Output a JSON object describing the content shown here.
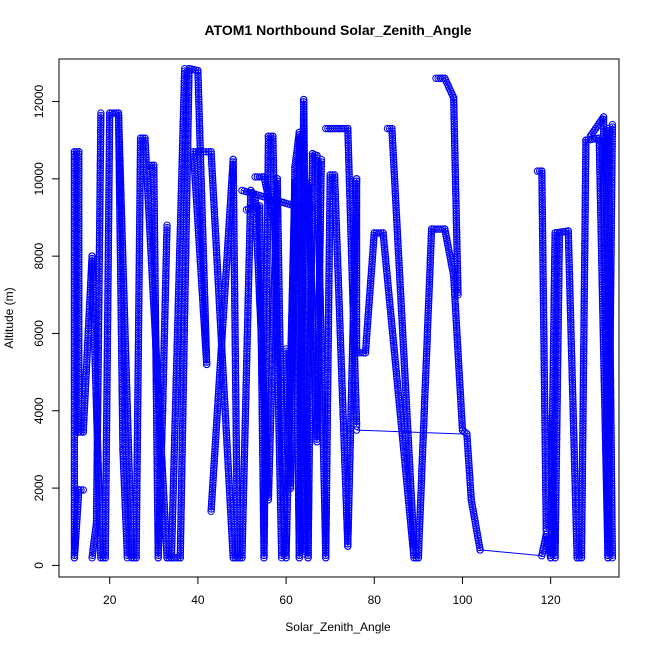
{
  "chart_data": {
    "type": "scatter",
    "title": "ATOM1 Northbound Solar_Zenith_Angle",
    "xlabel": "Solar_Zenith_Angle",
    "ylabel": "Altitude (m)",
    "xlim": [
      8.5,
      135.5
    ],
    "ylim": [
      -300,
      13100
    ],
    "xticks": [
      20,
      40,
      60,
      80,
      100,
      120
    ],
    "yticks": [
      0,
      2000,
      4000,
      6000,
      8000,
      10000,
      12000
    ],
    "color": "#0000ff",
    "marker": "open-circle",
    "connected": true,
    "track": [
      [
        12,
        200
      ],
      [
        12,
        10700
      ],
      [
        13,
        10700
      ],
      [
        13,
        3450
      ],
      [
        14,
        3450
      ],
      [
        16,
        8000
      ],
      [
        18,
        200
      ],
      [
        19,
        200
      ],
      [
        20,
        11700
      ],
      [
        22,
        11700
      ],
      [
        25,
        200
      ],
      [
        26,
        200
      ],
      [
        27,
        11050
      ],
      [
        28,
        11050
      ],
      [
        33,
        200
      ],
      [
        36,
        200
      ],
      [
        38,
        12850
      ],
      [
        40,
        12800
      ],
      [
        42,
        5200
      ],
      [
        39,
        10700
      ],
      [
        43,
        10700
      ],
      [
        48,
        200
      ],
      [
        50,
        200
      ],
      [
        52,
        9700
      ],
      [
        53,
        9500
      ],
      [
        56,
        1700
      ],
      [
        58,
        10000
      ],
      [
        59,
        3000
      ],
      [
        60,
        200
      ],
      [
        62,
        9900
      ],
      [
        63,
        200
      ],
      [
        64,
        12050
      ],
      [
        65,
        200
      ],
      [
        66,
        10650
      ],
      [
        67,
        10600
      ],
      [
        68,
        5600
      ],
      [
        69,
        200
      ],
      [
        70,
        10100
      ],
      [
        71,
        10100
      ],
      [
        74,
        500
      ],
      [
        76,
        10000
      ],
      [
        76,
        5500
      ],
      [
        78,
        5500
      ],
      [
        80,
        8600
      ],
      [
        82,
        8600
      ],
      [
        89,
        200
      ],
      [
        90,
        200
      ],
      [
        93,
        8700
      ],
      [
        96,
        8700
      ],
      [
        98,
        7500
      ],
      [
        100,
        3500
      ],
      [
        101,
        3400
      ],
      [
        102,
        1700
      ],
      [
        104,
        400
      ],
      [
        118,
        250
      ],
      [
        119,
        800
      ],
      [
        120,
        200
      ],
      [
        121,
        8600
      ],
      [
        124,
        8650
      ],
      [
        126,
        200
      ],
      [
        127,
        200
      ],
      [
        128,
        11000
      ],
      [
        131,
        11050
      ],
      [
        133,
        200
      ],
      [
        134,
        11400
      ]
    ],
    "extra_segments": [
      [
        [
          12,
          200
        ],
        [
          13,
          1950
        ],
        [
          14,
          1950
        ]
      ],
      [
        [
          16,
          200
        ],
        [
          17,
          1100
        ],
        [
          18,
          11700
        ]
      ],
      [
        [
          22,
          11700
        ],
        [
          23,
          3000
        ],
        [
          24,
          200
        ]
      ],
      [
        [
          29,
          10350
        ],
        [
          30,
          10350
        ],
        [
          31,
          200
        ],
        [
          32,
          4000
        ],
        [
          33,
          8800
        ]
      ],
      [
        [
          34,
          200
        ],
        [
          37,
          12850
        ]
      ],
      [
        [
          43,
          1400
        ],
        [
          48,
          10500
        ],
        [
          49,
          200
        ]
      ],
      [
        [
          51,
          9200
        ],
        [
          54,
          9300
        ],
        [
          55,
          200
        ],
        [
          56,
          11100
        ],
        [
          57,
          11100
        ],
        [
          59,
          200
        ]
      ],
      [
        [
          53,
          10050
        ],
        [
          55,
          10050
        ],
        [
          57,
          9000
        ]
      ],
      [
        [
          50,
          9700
        ],
        [
          62,
          9300
        ],
        [
          66,
          9250
        ]
      ],
      [
        [
          60,
          5600
        ],
        [
          61,
          2000
        ],
        [
          62,
          10300
        ],
        [
          63,
          11200
        ],
        [
          64,
          300
        ]
      ],
      [
        [
          64,
          10000
        ],
        [
          65,
          9800
        ],
        [
          67,
          3200
        ],
        [
          68,
          10500
        ]
      ],
      [
        [
          69,
          11300
        ],
        [
          70,
          11300
        ],
        [
          72,
          11300
        ],
        [
          74,
          11300
        ],
        [
          76,
          3600
        ]
      ],
      [
        [
          76,
          3500
        ],
        [
          100,
          3400
        ]
      ],
      [
        [
          83,
          11300
        ],
        [
          84,
          11300
        ],
        [
          89,
          500
        ]
      ],
      [
        [
          94,
          12600
        ],
        [
          95,
          12600
        ],
        [
          96,
          12600
        ],
        [
          98,
          12100
        ],
        [
          99,
          7000
        ]
      ],
      [
        [
          117,
          10200
        ],
        [
          118,
          10200
        ],
        [
          119,
          900
        ]
      ],
      [
        [
          120,
          3800
        ],
        [
          121,
          200
        ],
        [
          122,
          8600
        ]
      ],
      [
        [
          129,
          11100
        ],
        [
          132,
          11600
        ],
        [
          133,
          200
        ]
      ],
      [
        [
          132,
          10000
        ],
        [
          133,
          11300
        ],
        [
          134,
          200
        ]
      ]
    ]
  }
}
